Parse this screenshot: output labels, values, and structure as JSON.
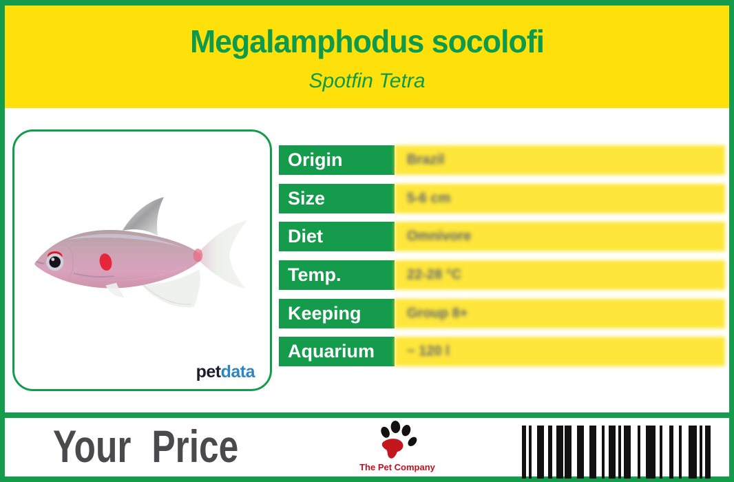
{
  "header": {
    "title": "Megalamphodus socolofi",
    "subtitle": "Spotfin Tetra"
  },
  "photo": {
    "subject": "spotfin-tetra-fish-photo",
    "brand_pet": "pet",
    "brand_data": "data"
  },
  "info_table": {
    "rows": [
      {
        "label": "Origin",
        "value": "Brazil"
      },
      {
        "label": "Size",
        "value": "5-6 cm"
      },
      {
        "label": "Diet",
        "value": "Omnivore"
      },
      {
        "label": "Temp.",
        "value": "22-28 °C"
      },
      {
        "label": "Keeping",
        "value": "Group 8+"
      },
      {
        "label": "Aquarium",
        "value": "~ 120 l"
      }
    ]
  },
  "footer": {
    "price_label": "Your Price",
    "company": "The Pet Company"
  },
  "barcode": {
    "pattern": [
      6,
      4,
      4,
      8,
      10,
      6,
      6,
      6,
      10,
      2,
      10,
      8,
      10,
      8,
      10,
      8,
      4,
      6,
      10,
      4,
      4,
      4,
      10,
      10,
      4,
      8,
      14,
      6,
      4,
      10,
      6,
      8,
      4,
      10,
      12,
      4,
      4,
      4,
      8
    ]
  },
  "colors": {
    "frame_green": "#149b4b",
    "header_yellow": "#fee00a",
    "title_green": "#0d9a4c",
    "label_text_white": "#ffffff",
    "price_gray": "#4a4a4c",
    "company_red": "#c01020",
    "brand_dark": "#1b1b2f",
    "brand_blue": "#2e86c0",
    "barcode_black": "#111111"
  }
}
